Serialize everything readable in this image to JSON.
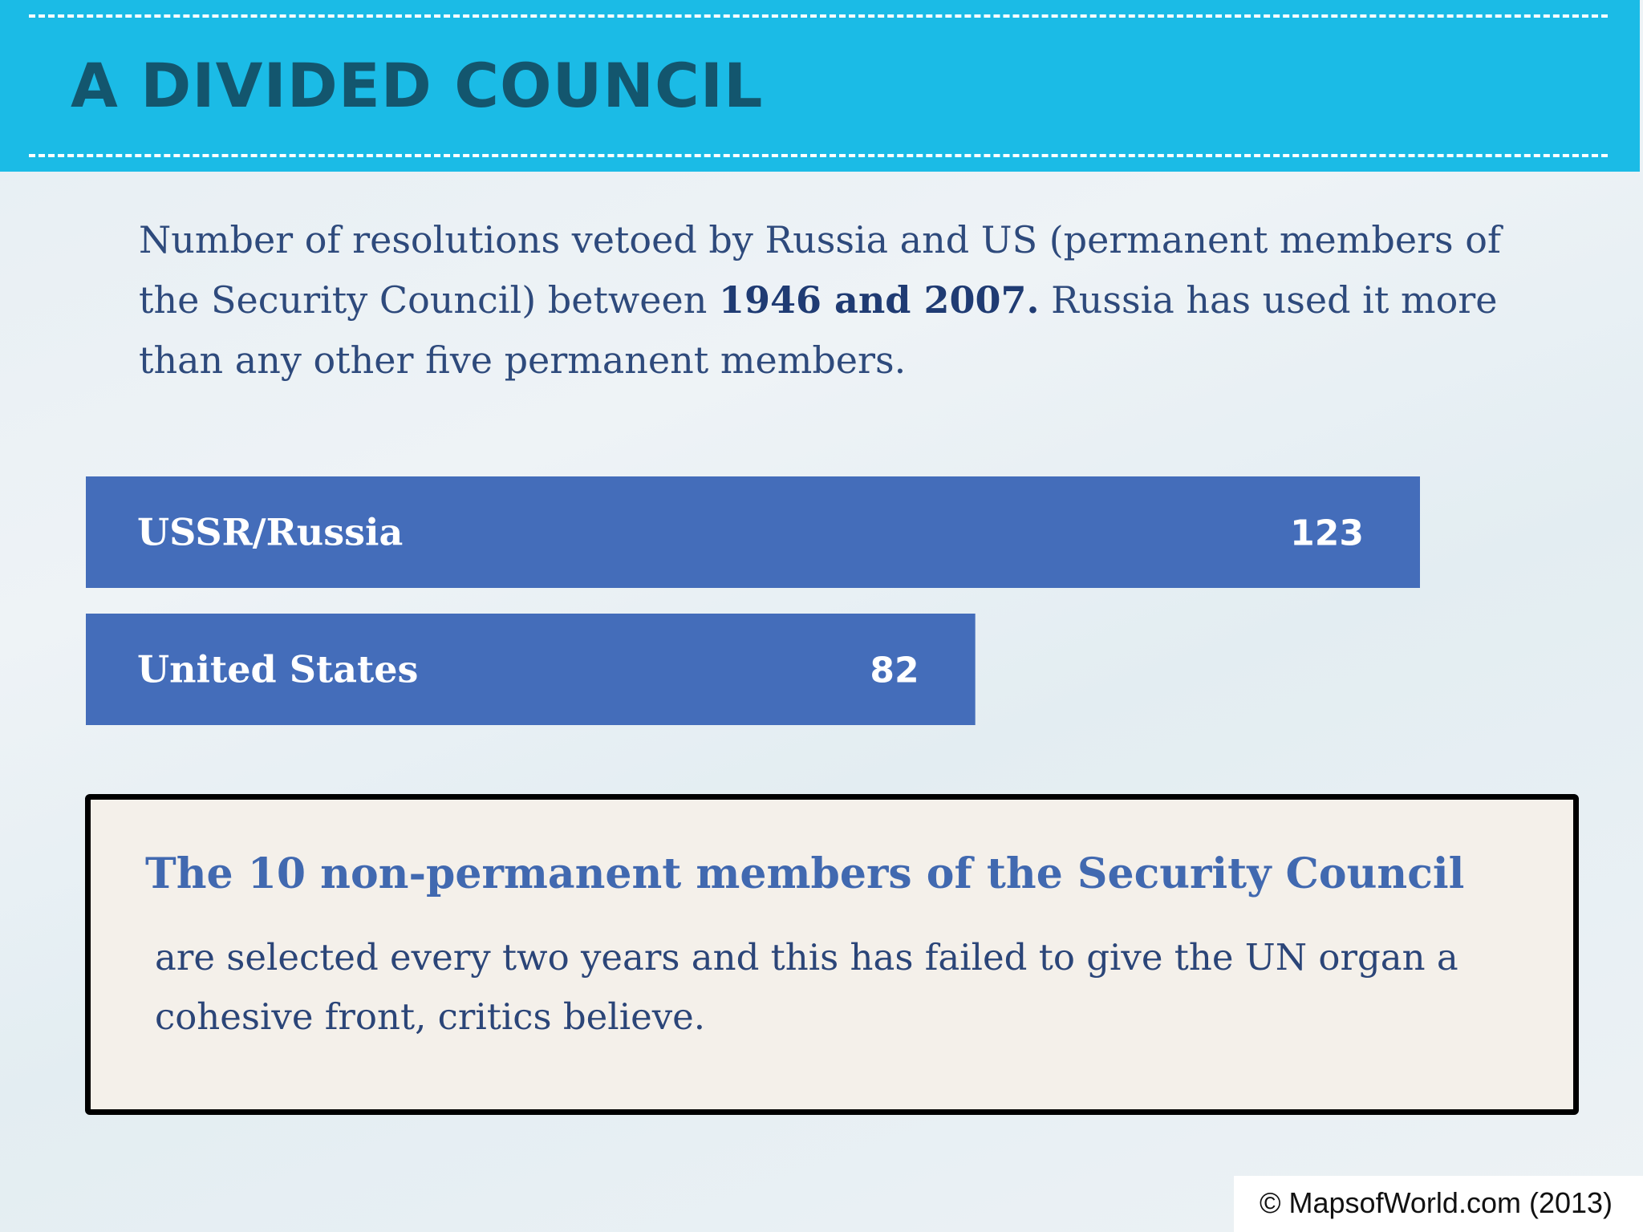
{
  "header": {
    "title": "A DIVIDED COUNCIL"
  },
  "intro": {
    "text_before": "Number of resolutions vetoed by Russia and US (permanent members of the Security Council) between ",
    "text_bold": "1946 and 2007.",
    "text_after": " Russia has used it more than any other five permanent members."
  },
  "colors": {
    "header_bg": "#1bbbe6",
    "title_text": "#13566e",
    "bar_fill": "#446dba",
    "body_text": "#2e4a7c",
    "callout_heading": "#4169b0"
  },
  "chart_data": {
    "type": "bar",
    "orientation": "horizontal",
    "categories": [
      "USSR/Russia",
      "United States"
    ],
    "values": [
      123,
      82
    ],
    "value_labels": [
      "123",
      "82"
    ],
    "xlim": [
      0,
      123
    ],
    "grid": false
  },
  "callout": {
    "heading": "The 10 non-permanent members of the Security Council",
    "body": "are selected every two years and this has failed to give the UN organ a cohesive front, critics believe."
  },
  "credit": "© MapsofWorld.com (2013)"
}
